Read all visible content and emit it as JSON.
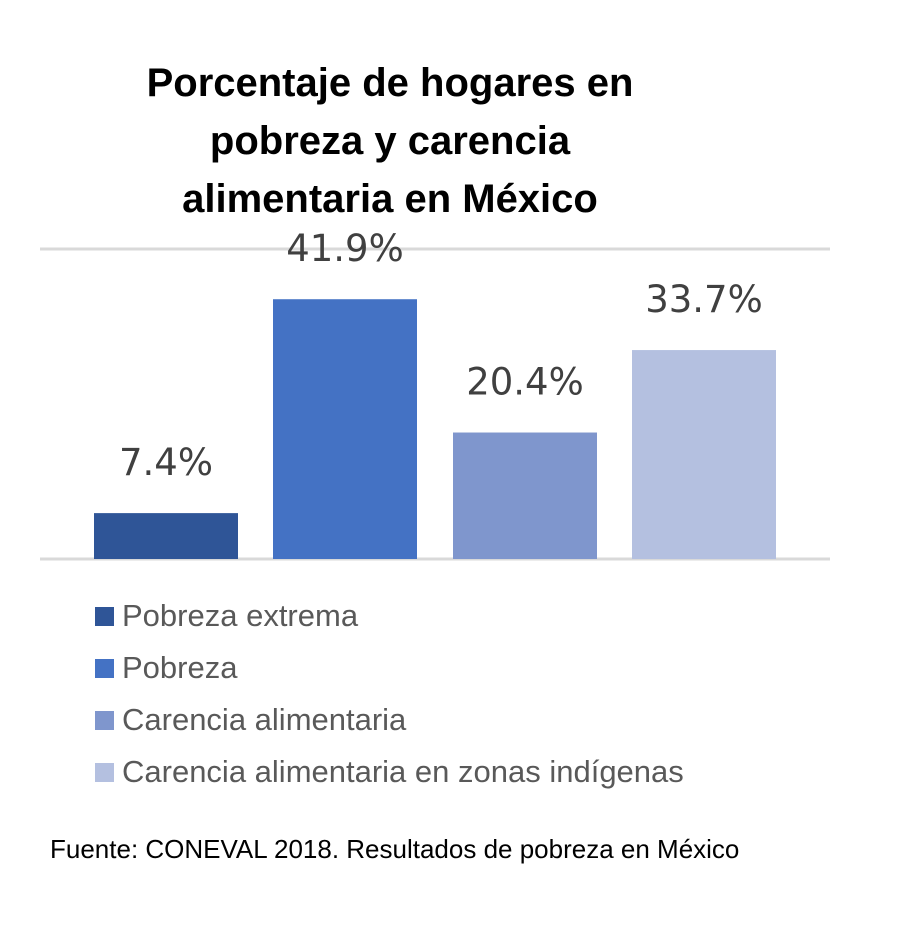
{
  "chart_data": {
    "type": "bar",
    "title_lines": [
      "Porcentaje de hogares en",
      "pobreza y  carencia",
      "alimentaria en México"
    ],
    "xlabel": "",
    "ylabel": "",
    "ylim": [
      0,
      50
    ],
    "grid": true,
    "legend_position": "bottom",
    "data_label_suffix": "%",
    "series": [
      {
        "name": "Pobreza extrema",
        "value": 7.4,
        "label": "7.4%",
        "color": "#2F5597"
      },
      {
        "name": "Pobreza",
        "value": 41.9,
        "label": "41.9%",
        "color": "#4472C4"
      },
      {
        "name": "Carencia alimentaria",
        "value": 20.4,
        "label": "20.4%",
        "color": "#7F96CD"
      },
      {
        "name": "Carencia alimentaria en zonas indígenas",
        "value": 33.7,
        "label": "33.7%",
        "color": "#B4C0E0"
      }
    ]
  },
  "source": "Fuente: CONEVAL 2018. Resultados de pobreza en México",
  "colors": {
    "gridline": "#D9D9D9",
    "data_label": "#404040",
    "legend_text": "#595959"
  }
}
